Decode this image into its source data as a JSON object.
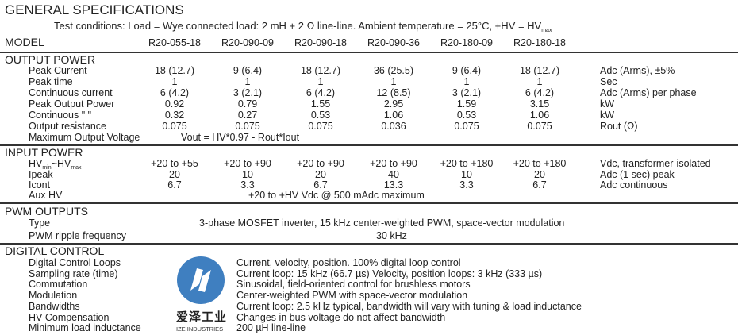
{
  "title": "GENERAL SPECIFICATIONS",
  "test_conditions": "Test conditions: Load = Wye connected load: 2 mH + 2 Ω line-line.  Ambient temperature = 25°C, +HV = HV",
  "test_conditions_sub": "max",
  "model_label": "MODEL",
  "models": [
    "R20-055-18",
    "R20-090-09",
    "R20-090-18",
    "R20-090-36",
    "R20-180-09",
    "R20-180-18"
  ],
  "output_power": {
    "heading": "OUTPUT POWER",
    "rows": [
      {
        "label": "Peak Current",
        "values": [
          "18 (12.7)",
          "9 (6.4)",
          "18 (12.7)",
          "36 (25.5)",
          "9 (6.4)",
          "18 (12.7)"
        ],
        "unit": "Adc (Arms), ±5%"
      },
      {
        "label": "Peak time",
        "values": [
          "1",
          "1",
          "1",
          "1",
          "1",
          "1"
        ],
        "unit": "Sec"
      },
      {
        "label": "Continuous current",
        "values": [
          "6 (4.2)",
          "3 (2.1)",
          "6 (4.2)",
          "12 (8.5)",
          "3 (2.1)",
          "6 (4.2)"
        ],
        "unit": "Adc (Arms) per phase"
      },
      {
        "label": "Peak Output Power",
        "values": [
          "0.92",
          "0.79",
          "1.55",
          "2.95",
          "1.59",
          "3.15"
        ],
        "unit": "kW"
      },
      {
        "label": "Continuous \"     \"",
        "values": [
          "0.32",
          "0.27",
          "0.53",
          "1.06",
          "0.53",
          "1.06"
        ],
        "unit": "kW"
      },
      {
        "label": "Output resistance",
        "values": [
          "0.075",
          "0.075",
          "0.075",
          "0.036",
          "0.075",
          "0.075"
        ],
        "unit": "Rout (Ω)"
      }
    ],
    "max_voltage_label": "Maximum Output Voltage",
    "max_voltage_value": "Vout = HV*0.97 - Rout*Iout"
  },
  "input_power": {
    "heading": "INPUT POWER",
    "hv_label": {
      "a": "HV",
      "a_sub": "min",
      "sep": "~HV",
      "b_sub": "max"
    },
    "rows": [
      {
        "values": [
          "+20 to +55",
          "+20 to +90",
          "+20 to +90",
          "+20 to +90",
          "+20 to +180",
          "+20 to +180"
        ],
        "unit": "Vdc, transformer-isolated"
      },
      {
        "label": "Ipeak",
        "values": [
          "20",
          "10",
          "20",
          "40",
          "10",
          "20"
        ],
        "unit": "Adc (1 sec) peak"
      },
      {
        "label": "Icont",
        "values": [
          "6.7",
          "3.3",
          "6.7",
          "13.3",
          "3.3",
          "6.7"
        ],
        "unit": "Adc continuous"
      }
    ],
    "aux_label": "Aux HV",
    "aux_value": "+20 to +HV Vdc @ 500 mAdc maximum"
  },
  "pwm_outputs": {
    "heading": "PWM OUTPUTS",
    "type_label": "Type",
    "type_value": "3-phase MOSFET inverter, 15 kHz center-weighted PWM, space-vector modulation",
    "ripple_label": "PWM ripple frequency",
    "ripple_value": "30 kHz"
  },
  "digital_control": {
    "heading": "DIGITAL CONTROL",
    "rows": [
      {
        "label": "Digital Control Loops",
        "value": "Current, velocity, position. 100% digital loop control"
      },
      {
        "label": "Sampling rate (time)",
        "value": "Current loop: 15 kHz (66.7 µs)  Velocity, position loops: 3 kHz (333 µs)"
      },
      {
        "label": "Commutation",
        "value": "Sinusoidal, field-oriented control for brushless motors"
      },
      {
        "label": "Modulation",
        "value": "Center-weighted PWM with space-vector modulation"
      },
      {
        "label": "Bandwidths",
        "value": "Current loop: 2.5 kHz typical, bandwidth will vary with tuning & load inductance"
      },
      {
        "label": "HV Compensation",
        "value": "Changes in bus voltage do not affect bandwidth"
      },
      {
        "label": "Minimum load inductance",
        "value": "200 µH line-line"
      }
    ]
  },
  "watermark": {
    "cn": "爱泽工业",
    "en": "IZE INDUSTRIES",
    "color": "#3f7fc0"
  }
}
